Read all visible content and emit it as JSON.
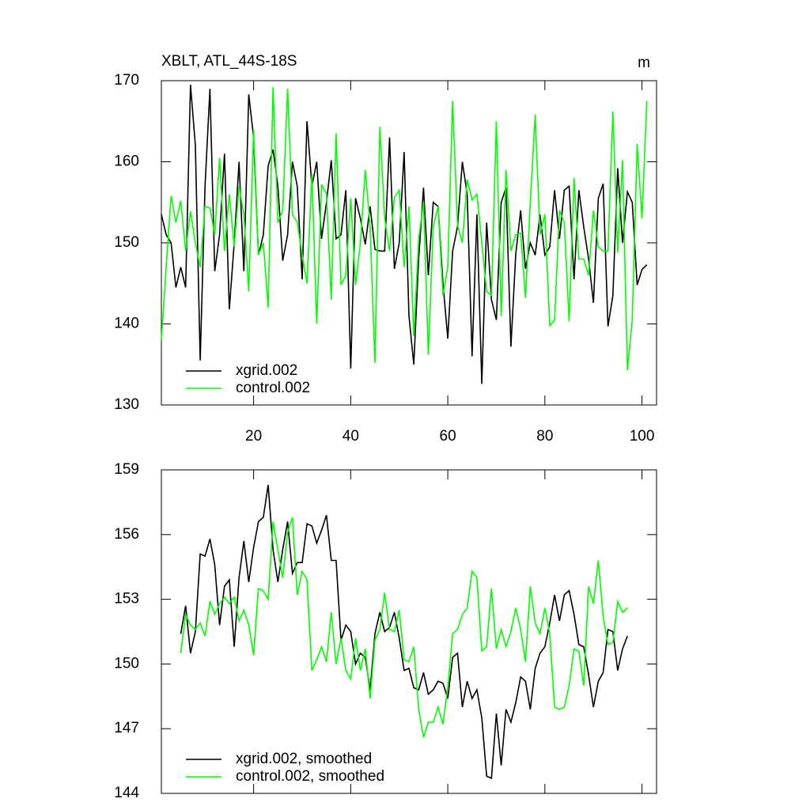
{
  "chart_data": [
    {
      "type": "line",
      "title": "XBLT, ATL_44S-18S",
      "units": "m",
      "x": [
        1,
        2,
        3,
        4,
        5,
        6,
        7,
        8,
        9,
        10,
        11,
        12,
        13,
        14,
        15,
        16,
        17,
        18,
        19,
        20,
        21,
        22,
        23,
        24,
        25,
        26,
        27,
        28,
        29,
        30,
        31,
        32,
        33,
        34,
        35,
        36,
        37,
        38,
        39,
        40,
        41,
        42,
        43,
        44,
        45,
        46,
        47,
        48,
        49,
        50,
        51,
        52,
        53,
        54,
        55,
        56,
        57,
        58,
        59,
        60,
        61,
        62,
        63,
        64,
        65,
        66,
        67,
        68,
        69,
        70,
        71,
        72,
        73,
        74,
        75,
        76,
        77,
        78,
        79,
        80,
        81,
        82,
        83,
        84,
        85,
        86,
        87,
        88,
        89,
        90,
        91,
        92,
        93,
        94,
        95,
        96,
        97,
        98,
        99,
        100,
        101
      ],
      "xlim": [
        1,
        103
      ],
      "xticks": [
        20,
        40,
        60,
        80,
        100
      ],
      "ylim": [
        130,
        170
      ],
      "yticks": [
        130,
        140,
        150,
        160,
        170
      ],
      "series": [
        {
          "name": "xgrid.002",
          "color": "#000000",
          "values": [
            153.5,
            151,
            150,
            144.5,
            147,
            144.5,
            169.5,
            162,
            135.5,
            157,
            169,
            146.5,
            151,
            161,
            141.8,
            150,
            160,
            146.5,
            168.3,
            163,
            148.5,
            151,
            159.5,
            161.5,
            157,
            147.8,
            151,
            160,
            157,
            145.5,
            165,
            157,
            160,
            150.5,
            155,
            160.2,
            150.5,
            151,
            156.5,
            134.5,
            155.5,
            153,
            149.8,
            154.5,
            149.2,
            149,
            149,
            163,
            146.8,
            150,
            161.2,
            141,
            135,
            148,
            156.8,
            146,
            155,
            154.5,
            145,
            138.2,
            149,
            152,
            160,
            156,
            136,
            153.5,
            132.6,
            152.5,
            143,
            140.5,
            155,
            156.8,
            137.2,
            148.6,
            154,
            146.8,
            150,
            148.5,
            153.5,
            148.5,
            149.5,
            156.5,
            150.5,
            156.5,
            157,
            145.5,
            156.5,
            152,
            148,
            142.6,
            155.5,
            157.3,
            139.7,
            143.5,
            159.2,
            150,
            156.3,
            155,
            144.8,
            146.7,
            147.3
          ]
        },
        {
          "name": "control.002",
          "color": "#00ff00",
          "values": [
            138,
            147,
            155.8,
            152.5,
            155.2,
            149,
            153.9,
            150,
            147,
            154.5,
            154.3,
            151,
            160.5,
            149,
            156,
            149.5,
            157,
            153.5,
            144,
            164,
            148.5,
            150,
            142,
            169.2,
            152.5,
            154,
            169,
            153.5,
            152.5,
            148.5,
            145,
            158.5,
            140,
            157.2,
            156,
            143,
            163.5,
            144.8,
            146,
            155.5,
            144.8,
            150,
            159,
            152,
            135.2,
            164.3,
            153,
            149,
            155.6,
            156.5,
            147,
            154.5,
            138.5,
            150.5,
            155,
            136.2,
            152,
            154.5,
            143.5,
            147,
            167.5,
            152.2,
            150,
            157.8,
            155.3,
            156,
            150,
            144,
            143.5,
            165,
            141,
            159,
            149,
            151,
            151.2,
            143.2,
            155,
            165.8,
            151,
            153.5,
            139.8,
            140.5,
            154,
            152.5,
            140.3,
            158,
            148,
            148,
            146,
            154,
            149.5,
            149,
            149,
            166.2,
            148.8,
            160.2,
            134.3,
            140.5,
            162.2,
            153,
            167.5
          ]
        }
      ]
    },
    {
      "type": "line",
      "x": [
        5,
        6,
        7,
        8,
        9,
        10,
        11,
        12,
        13,
        14,
        15,
        16,
        17,
        18,
        19,
        20,
        21,
        22,
        23,
        24,
        25,
        26,
        27,
        28,
        29,
        30,
        31,
        32,
        33,
        34,
        35,
        36,
        37,
        38,
        39,
        40,
        41,
        42,
        43,
        44,
        45,
        46,
        47,
        48,
        49,
        50,
        51,
        52,
        53,
        54,
        55,
        56,
        57,
        58,
        59,
        60,
        61,
        62,
        63,
        64,
        65,
        66,
        67,
        68,
        69,
        70,
        71,
        72,
        73,
        74,
        75,
        76,
        77,
        78,
        79,
        80,
        81,
        82,
        83,
        84,
        85,
        86,
        87,
        88,
        89,
        90,
        91,
        92,
        93,
        94,
        95,
        96,
        97
      ],
      "xlim": [
        1,
        103
      ],
      "ylim": [
        144,
        159
      ],
      "yticks": [
        144,
        147,
        150,
        153,
        156,
        159
      ],
      "series": [
        {
          "name": "xgrid.002, smoothed",
          "color": "#000000",
          "values": [
            151.4,
            152.7,
            150.5,
            151.5,
            155.1,
            155.0,
            155.8,
            154.6,
            151.8,
            153.6,
            153.9,
            150.8,
            154.0,
            155.7,
            153.8,
            155.4,
            156.6,
            156.8,
            158.3,
            155.3,
            153.8,
            155.3,
            156.6,
            154.2,
            154.7,
            154.7,
            156.5,
            156.4,
            155.6,
            156.2,
            156.9,
            154.8,
            154.8,
            151.1,
            151.8,
            151.5,
            150.0,
            150.5,
            150.3,
            148.8,
            151.4,
            152.4,
            151.5,
            151.7,
            152.4,
            151.2,
            149.7,
            149.8,
            148.9,
            148.8,
            149.6,
            148.6,
            148.8,
            149.2,
            149.1,
            148.4,
            150.3,
            150.5,
            148.0,
            149.2,
            148.4,
            148.8,
            147.5,
            144.8,
            144.7,
            147.7,
            145.3,
            147.9,
            147.3,
            148.2,
            149.4,
            149.2,
            147.9,
            149.8,
            150.5,
            150.8,
            151.9,
            153.2,
            152.0,
            153.2,
            153.4,
            152.3,
            150.9,
            150.8,
            149.5,
            148.0,
            149.2,
            149.6,
            151.6,
            151.5,
            149.7,
            150.7,
            151.3
          ]
        },
        {
          "name": "control.002, smoothed",
          "color": "#00ff00",
          "values": [
            150.5,
            152.3,
            151.8,
            151.6,
            151.9,
            151.3,
            152.9,
            152.3,
            152.8,
            153.1,
            152.8,
            153.1,
            152.0,
            152.5,
            151.8,
            150.4,
            153.5,
            153.4,
            153.0,
            156.6,
            155.3,
            154.0,
            156.1,
            156.8,
            153.2,
            154.3,
            153.9,
            149.7,
            150.2,
            150.8,
            150.1,
            152.4,
            150.0,
            151.2,
            149.7,
            149.3,
            151.2,
            149.7,
            150.7,
            148.4,
            151.1,
            151.6,
            153.3,
            151.6,
            151.5,
            152.5,
            150.2,
            150.1,
            150.8,
            147.9,
            146.6,
            147.3,
            147.3,
            148.0,
            147.2,
            148.9,
            151.4,
            151.6,
            152.3,
            152.6,
            154.3,
            154.0,
            150.6,
            150.8,
            153.5,
            150.7,
            151.6,
            150.8,
            151.5,
            152.6,
            151.6,
            150.1,
            153.6,
            151.9,
            151.4,
            152.6,
            151.4,
            148.0,
            147.9,
            148.0,
            149.0,
            150.7,
            150.6,
            149.0,
            153.6,
            152.8,
            154.8,
            152.2,
            150.9,
            151.0,
            152.9,
            152.4,
            152.6
          ]
        }
      ]
    }
  ]
}
